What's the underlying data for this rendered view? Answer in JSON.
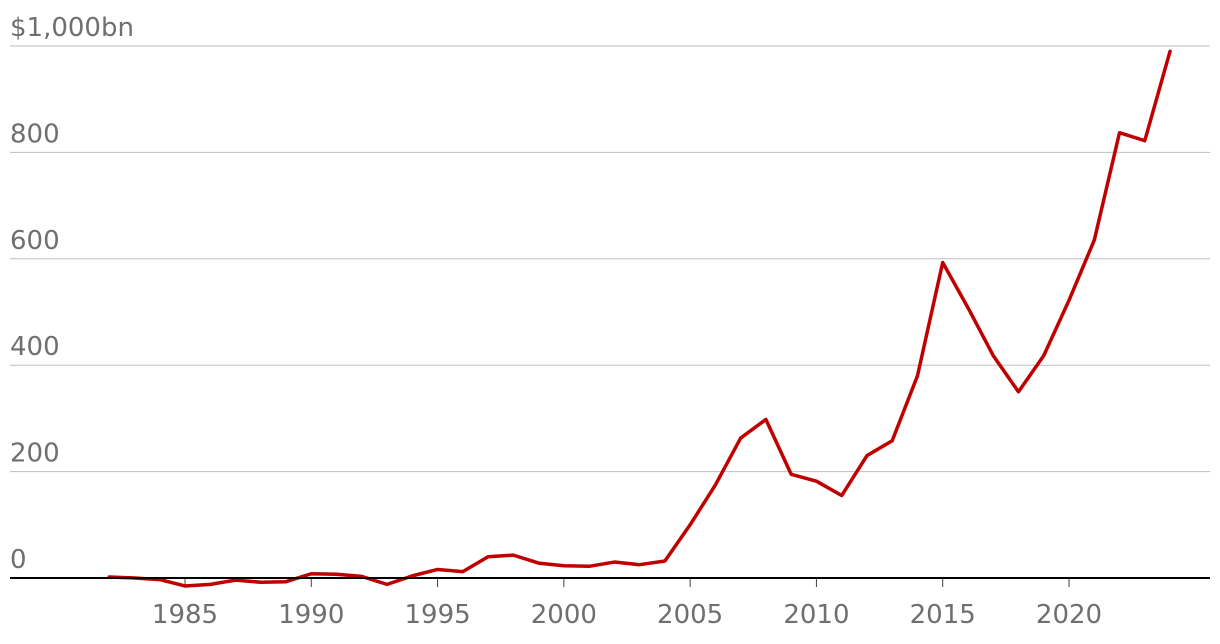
{
  "chart_data": {
    "type": "line",
    "title": "",
    "xlabel": "",
    "ylabel": "",
    "ylim": [
      0,
      1000
    ],
    "xlim": [
      1982,
      2024
    ],
    "grid": true,
    "legend": "none",
    "y_ticks": [
      {
        "value": 0,
        "label": "0"
      },
      {
        "value": 200,
        "label": "200"
      },
      {
        "value": 400,
        "label": "400"
      },
      {
        "value": 600,
        "label": "600"
      },
      {
        "value": 800,
        "label": "800"
      },
      {
        "value": 1000,
        "label": "$1,000bn"
      }
    ],
    "x_ticks": [
      {
        "value": 1985,
        "label": "1985"
      },
      {
        "value": 1990,
        "label": "1990"
      },
      {
        "value": 1995,
        "label": "1995"
      },
      {
        "value": 2000,
        "label": "2000"
      },
      {
        "value": 2005,
        "label": "2005"
      },
      {
        "value": 2010,
        "label": "2010"
      },
      {
        "value": 2015,
        "label": "2015"
      },
      {
        "value": 2020,
        "label": "2020"
      }
    ],
    "colors": {
      "series": "#c00000",
      "grid": "#bdbdbd",
      "axis": "#000000",
      "tick_label": "#6f6f6f"
    },
    "series": [
      {
        "x": [
          1982,
          1983,
          1984,
          1985,
          1986,
          1987,
          1988,
          1989,
          1990,
          1991,
          1992,
          1993,
          1994,
          1995,
          1996,
          1997,
          1998,
          1999,
          2000,
          2001,
          2002,
          2003,
          2004,
          2005,
          2006,
          2007,
          2008,
          2009,
          2010,
          2011,
          2012,
          2013,
          2014,
          2015,
          2016,
          2017,
          2018,
          2019,
          2020,
          2021,
          2022,
          2023,
          2024
        ],
        "values": [
          2,
          0,
          -3,
          -15,
          -12,
          -4,
          -8,
          -7,
          8,
          7,
          3,
          -12,
          4,
          16,
          12,
          40,
          43,
          28,
          23,
          22,
          30,
          25,
          32,
          100,
          175,
          263,
          298,
          195,
          182,
          155,
          230,
          258,
          380,
          593,
          508,
          418,
          350,
          418,
          522,
          635,
          837,
          822,
          990
        ]
      }
    ]
  }
}
